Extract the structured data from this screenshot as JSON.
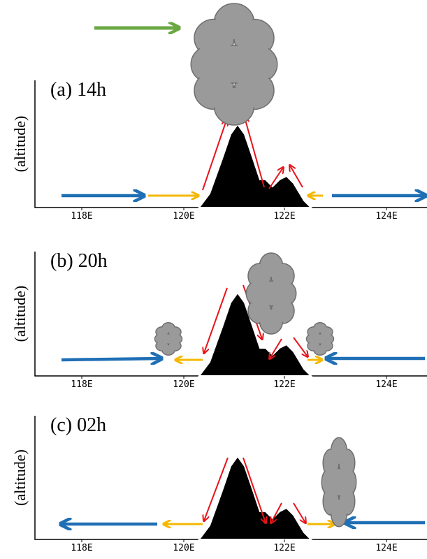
{
  "panels": [
    {
      "label": "(a) 14h",
      "y_label": "(altitude)",
      "x_ticks": [
        "118E",
        "120E",
        "122E",
        "124E"
      ]
    },
    {
      "label": "(b) 20h",
      "y_label": "(altitude)",
      "x_ticks": [
        "118E",
        "120E",
        "122E",
        "124E"
      ]
    },
    {
      "label": "(c) 02h",
      "y_label": "(altitude)",
      "x_ticks": [
        "118E",
        "120E",
        "122E",
        "124E"
      ]
    }
  ]
}
